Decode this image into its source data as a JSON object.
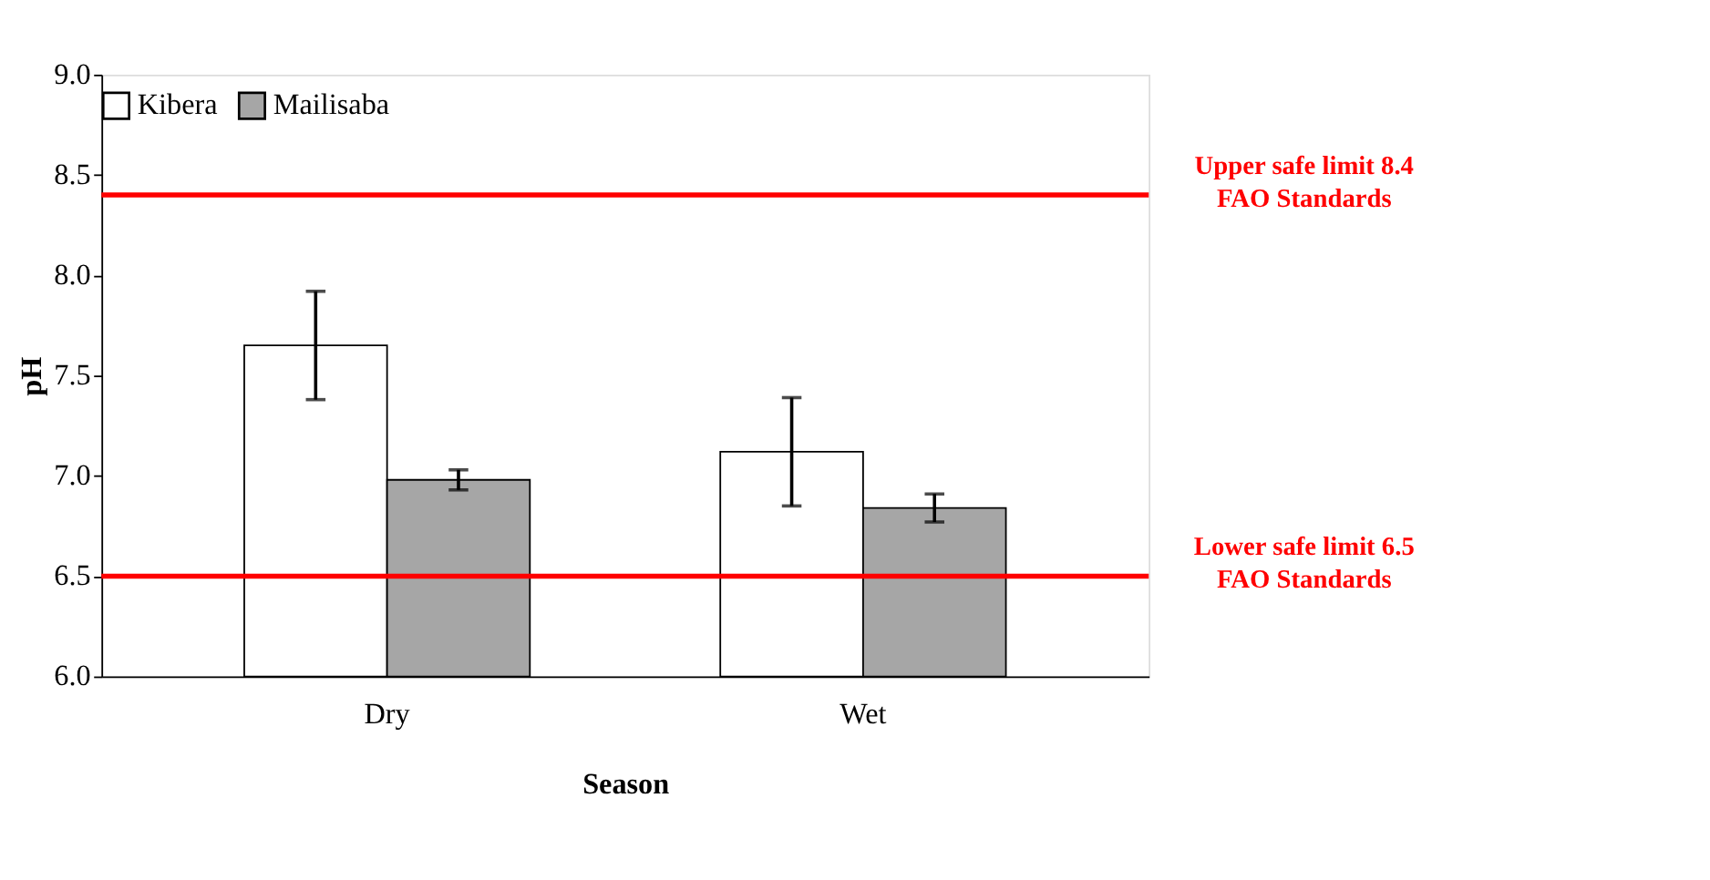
{
  "chart_data": {
    "type": "bar",
    "xlabel": "Season",
    "ylabel": "pH",
    "categories": [
      "Dry",
      "Wet"
    ],
    "series": [
      {
        "name": "Kibera",
        "color": "#ffffff",
        "values": [
          7.65,
          7.12
        ],
        "errors": [
          0.27,
          0.27
        ]
      },
      {
        "name": "Mailisaba",
        "color": "#a6a6a6",
        "values": [
          6.98,
          6.84
        ],
        "errors": [
          0.05,
          0.07
        ]
      }
    ],
    "ylim": [
      6.0,
      9.0
    ],
    "yticks": [
      {
        "value": 6.0,
        "label": "6.0"
      },
      {
        "value": 6.5,
        "label": "6.5"
      },
      {
        "value": 7.0,
        "label": "7.0"
      },
      {
        "value": 7.5,
        "label": "7.5"
      },
      {
        "value": 8.0,
        "label": "8.0"
      },
      {
        "value": 8.5,
        "label": "8.5"
      },
      {
        "value": 9.0,
        "label": "9.0"
      }
    ],
    "ref_lines": [
      {
        "axis": "y",
        "value": 8.4,
        "label": "Upper safe limit 8.4\nFAO Standards",
        "color": "#ff0000"
      },
      {
        "axis": "y",
        "value": 6.5,
        "label": "Lower safe limit 6.5\nFAO Standards",
        "color": "#ff0000"
      }
    ],
    "legend": "top",
    "grid": false
  }
}
